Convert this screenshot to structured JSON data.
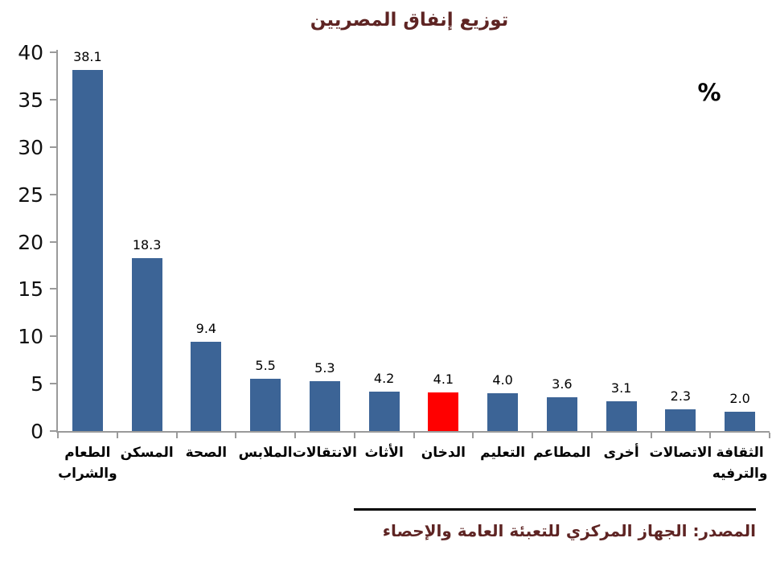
{
  "chart_data": {
    "type": "bar",
    "title": "توزيع إنفاق المصريين",
    "unit_label": "%",
    "categories": [
      "الطعام\nوالشراب",
      "المسكن",
      "الصحة",
      "الملابس",
      "الانتقالات",
      "الأثاث",
      "الدخان",
      "التعليم",
      "المطاعم",
      "أخرى",
      "الاتصالات",
      "الثقافة\nوالترفيه"
    ],
    "values": [
      38.1,
      18.3,
      9.4,
      5.5,
      5.3,
      4.2,
      4.1,
      4.0,
      3.6,
      3.1,
      2.3,
      2.0
    ],
    "value_labels": [
      "38.1",
      "18.3",
      "9.4",
      "5.5",
      "5.3",
      "4.2",
      "4.1",
      "4.0",
      "3.6",
      "3.1",
      "2.3",
      "2.0"
    ],
    "highlight_index": 6,
    "ylim": [
      0,
      40
    ],
    "ytick_step": 5,
    "grid": false,
    "legend_position": "none",
    "colors": {
      "bar": "#3c6496",
      "highlight": "#ff0000",
      "axis": "#9a9a9a",
      "title": "#5e2423",
      "tick_label": "#111111",
      "value_label": "#000000"
    }
  },
  "footer": {
    "source_text": "المصدر: الجهاز المركزي للتعبئة العامة والإحصاء"
  }
}
